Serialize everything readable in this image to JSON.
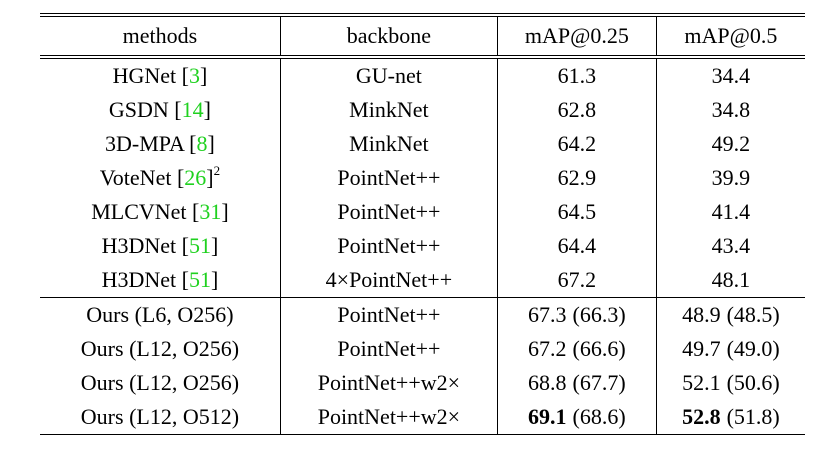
{
  "header": [
    "methods",
    "backbone",
    "mAP@0.25",
    "mAP@0.5"
  ],
  "groups": [
    [
      {
        "method": {
          "pre": "HGNet [",
          "ref": "3",
          "post": "]"
        },
        "backbone": "GU-net",
        "map25": 61.3,
        "map50": 34.4
      },
      {
        "method": {
          "pre": "GSDN [",
          "ref": "14",
          "post": "]"
        },
        "backbone": "MinkNet",
        "map25": 62.8,
        "map50": 34.8
      },
      {
        "method": {
          "pre": "3D-MPA [",
          "ref": "8",
          "post": "]"
        },
        "backbone": "MinkNet",
        "map25": 64.2,
        "map50": 49.2
      },
      {
        "method": {
          "pre": "VoteNet [",
          "ref": "26",
          "post": "]",
          "sup": "2"
        },
        "backbone": "PointNet++",
        "map25": 62.9,
        "map50": 39.9
      },
      {
        "method": {
          "pre": "MLCVNet [",
          "ref": "31",
          "post": "]"
        },
        "backbone": "PointNet++",
        "map25": 64.5,
        "map50": 41.4
      },
      {
        "method": {
          "pre": "H3DNet [",
          "ref": "51",
          "post": "]"
        },
        "backbone": "PointNet++",
        "map25": 64.4,
        "map50": 43.4
      },
      {
        "method": {
          "pre": "H3DNet [",
          "ref": "51",
          "post": "]"
        },
        "backbone": "4×PointNet++",
        "map25": 67.2,
        "map50": 48.1
      }
    ],
    [
      {
        "method": "Ours (L6, O256)",
        "backbone": "PointNet++",
        "map25": {
          "main": "67.3",
          "paren": "(66.3)"
        },
        "map50": {
          "main": "48.9",
          "paren": "(48.5)"
        }
      },
      {
        "method": "Ours (L12, O256)",
        "backbone": "PointNet++",
        "map25": {
          "main": "67.2",
          "paren": "(66.6)"
        },
        "map50": {
          "main": "49.7",
          "paren": "(49.0)"
        }
      },
      {
        "method": "Ours (L12, O256)",
        "backbone": "PointNet++w2×",
        "map25": {
          "main": "68.8",
          "paren": "(67.7)"
        },
        "map50": {
          "main": "52.1",
          "paren": "(50.6)"
        }
      },
      {
        "method": "Ours (L12, O512)",
        "backbone": "PointNet++w2×",
        "map25": {
          "main": "69.1",
          "paren": "(68.6)",
          "bold": true
        },
        "map50": {
          "main": "52.8",
          "paren": "(51.8)",
          "bold": true
        }
      }
    ]
  ]
}
